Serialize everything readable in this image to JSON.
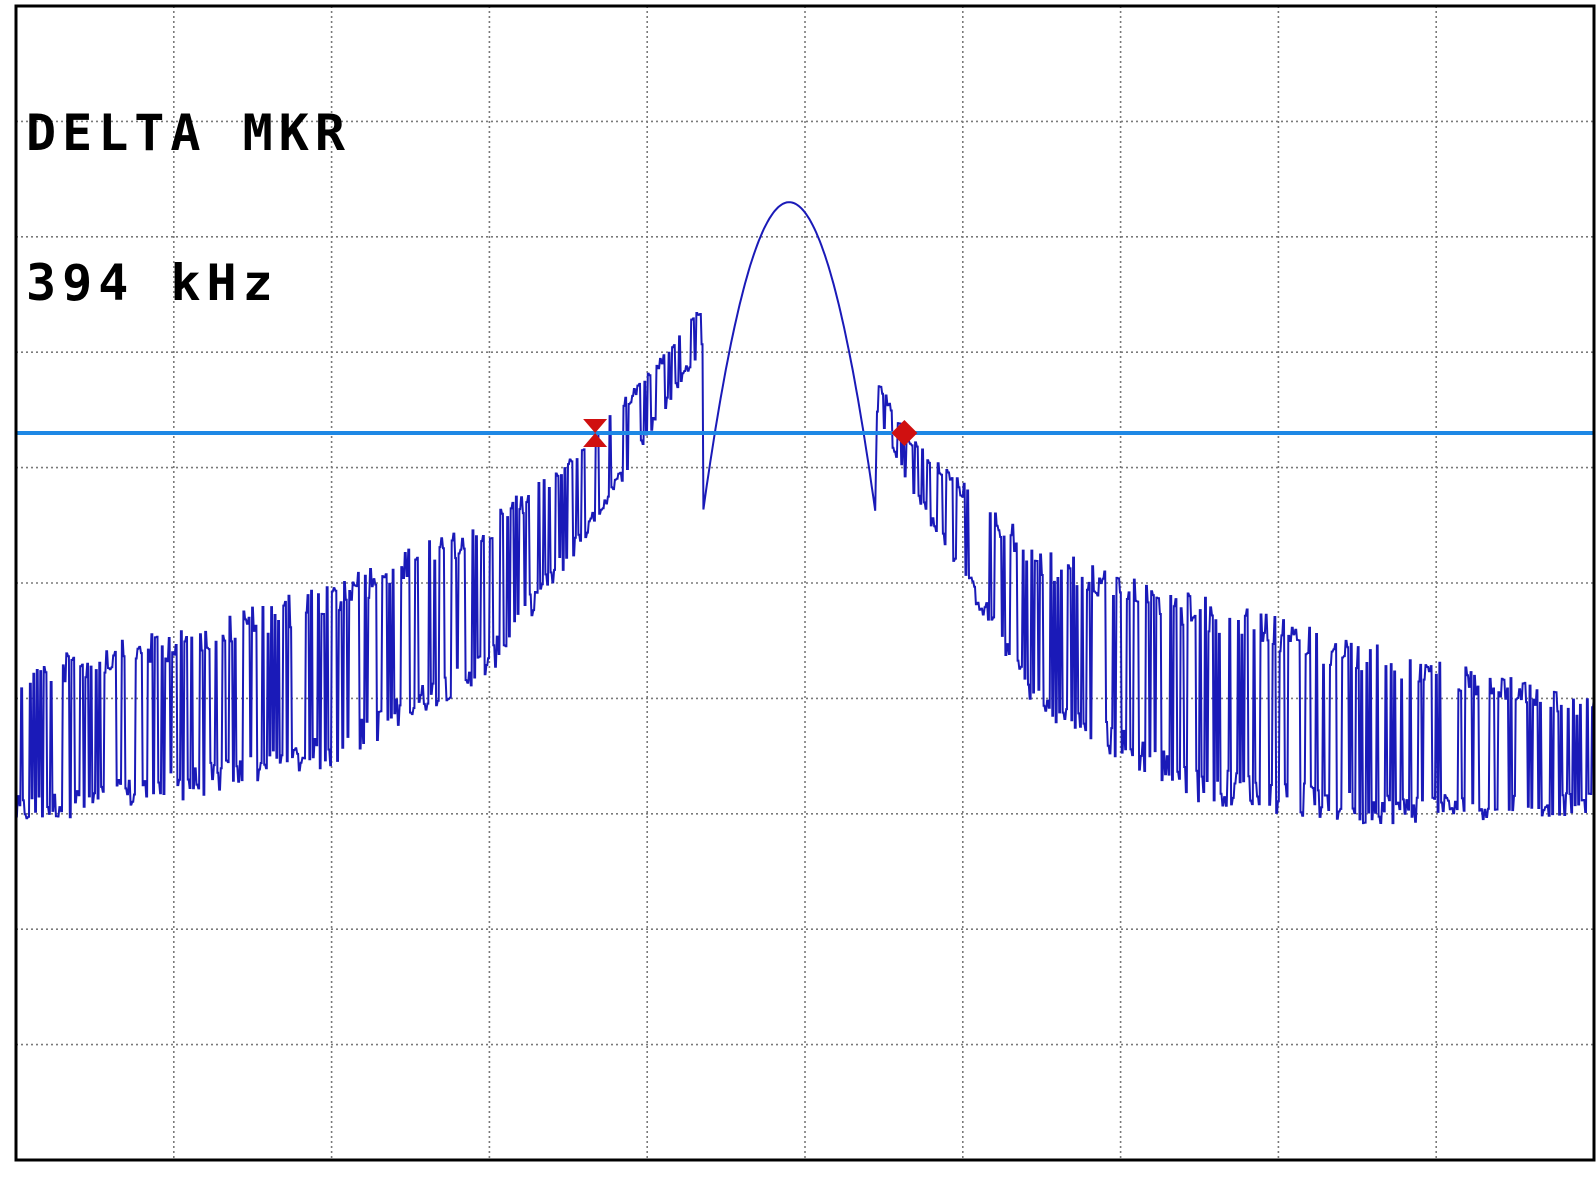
{
  "readout": {
    "line1": "DELTA MKR",
    "line2": "394 kHz"
  },
  "colors": {
    "trace": "#1a1ab8",
    "reference_line": "#1e88e5",
    "markers": "#d01010",
    "grid": "#7a7a7a",
    "frame": "#000000"
  },
  "chart_data": {
    "type": "line",
    "title": "",
    "xlabel": "",
    "ylabel": "",
    "grid": true,
    "grid_divisions": {
      "x": 10,
      "y": 10
    },
    "xlim": [
      0,
      10
    ],
    "ylim": [
      0,
      10
    ],
    "peak": {
      "x": 4.9,
      "y": 8.3
    },
    "reference_level": 6.3,
    "markers": [
      {
        "shape": "hourglass",
        "x": 3.67,
        "y": 6.3
      },
      {
        "shape": "diamond",
        "x": 5.63,
        "y": 6.3
      }
    ],
    "envelope": {
      "upper": {
        "x": [
          0,
          1,
          2,
          3,
          3.67,
          4.9,
          5.63,
          6.5,
          7.5,
          8.5,
          10
        ],
        "y": [
          4.3,
          4.6,
          5.0,
          5.6,
          6.3,
          8.3,
          6.3,
          5.3,
          4.9,
          4.5,
          4.0
        ]
      },
      "lower": {
        "x": [
          0,
          1,
          2,
          3,
          3.67,
          4.9,
          5.63,
          6.5,
          7.5,
          8.5,
          10
        ],
        "y": [
          2.9,
          3.1,
          3.4,
          4.2,
          5.5,
          8.3,
          5.9,
          3.8,
          3.1,
          2.9,
          3.0
        ]
      }
    }
  }
}
